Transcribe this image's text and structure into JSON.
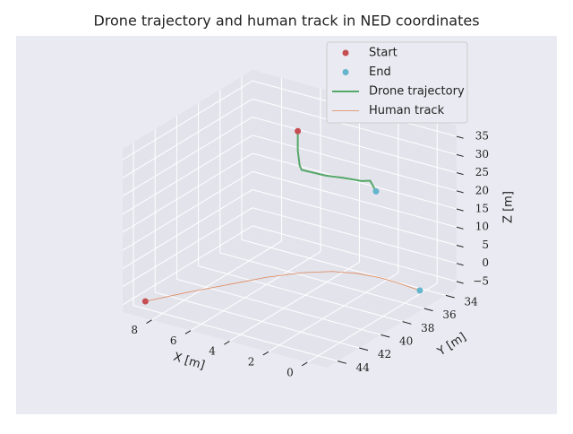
{
  "chart_data": {
    "type": "line3d",
    "title": "Drone trajectory and human track in NED coordinates",
    "xlabel": "X [m]",
    "ylabel": "Y [m]",
    "zlabel": "Z [m]",
    "xlim": [
      -1,
      9.5
    ],
    "ylim": [
      33,
      45
    ],
    "zlim": [
      -7,
      38
    ],
    "xticks": [
      0,
      2,
      4,
      6,
      8
    ],
    "yticks": [
      34,
      36,
      38,
      40,
      42,
      44
    ],
    "zticks": [
      {
        "value": -5,
        "label": "−5"
      },
      0,
      5,
      10,
      15,
      20,
      25,
      30,
      35
    ],
    "grid": true,
    "legend": "upper right",
    "series": [
      {
        "name": "Start",
        "kind": "scatter",
        "color": "#c44e52",
        "x": [
          9,
          5.5
        ],
        "y": [
          43.8,
          36
        ],
        "z": [
          -5.5,
          32.4
        ]
      },
      {
        "name": "End",
        "kind": "scatter",
        "color": "#64b5cd",
        "x": [
          -0.5,
          1.2
        ],
        "y": [
          35.5,
          36.5
        ],
        "z": [
          -3.7,
          23
        ]
      },
      {
        "name": "Drone trajectory",
        "kind": "line",
        "color": "#55a868",
        "x": [
          5.5,
          5.5,
          5.4,
          5.3,
          4,
          3,
          2,
          1.5,
          1.2
        ],
        "y": [
          36,
          36,
          36,
          36,
          36.1,
          36.2,
          36.4,
          36.5,
          36.5
        ],
        "z": [
          32.4,
          27,
          23,
          22,
          22.5,
          23.5,
          24.5,
          25.5,
          23
        ]
      },
      {
        "name": "Human track",
        "kind": "line",
        "color": "#dd8452",
        "x": [
          9,
          8,
          7,
          6,
          5,
          4,
          3,
          2,
          1,
          -0.5
        ],
        "y": [
          43.8,
          42,
          40,
          38,
          36.5,
          35.5,
          35,
          34.8,
          35,
          35.5
        ],
        "z": [
          -5.5,
          -5,
          -5,
          -5,
          -5,
          -5,
          -5,
          -5,
          -4.5,
          -3.7
        ]
      }
    ]
  }
}
